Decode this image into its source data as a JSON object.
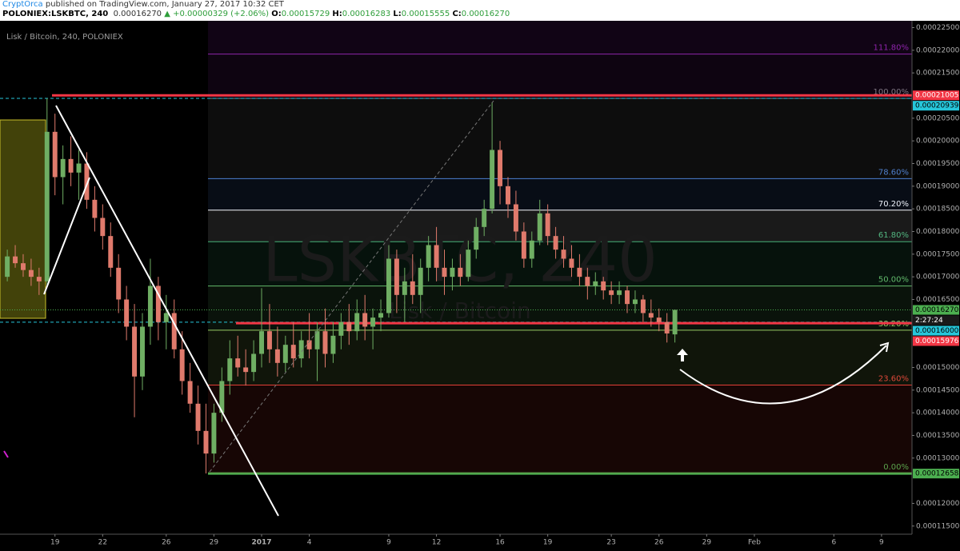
{
  "header": {
    "user": "CryptOrca",
    "published": "published on TradingView.com, January 27, 2017 10:32 CET",
    "symbol": "POLONIEX:LSKBTC, 240",
    "last": "0.00016270",
    "change": "▲ +0.00000329 (+2.06%)",
    "ohlc": [
      {
        "label": "O:",
        "value": "0.00015729"
      },
      {
        "label": "H:",
        "value": "0.00016283"
      },
      {
        "label": "L:",
        "value": "0.00015555"
      },
      {
        "label": "C:",
        "value": "0.00016270"
      }
    ]
  },
  "chart_data": {
    "type": "candlestick",
    "title": "Lisk / Bitcoin, 240, POLONIEX",
    "watermark": "LSKBTC, 240",
    "watermark_sub": "Lisk / Bitcoin",
    "up_color": "#6fae63",
    "down_color": "#e07a6c",
    "x": [
      "2016-12-16T00:00",
      "2016-12-16T12:00",
      "2016-12-17T00:00",
      "2016-12-17T12:00",
      "2016-12-18T00:00",
      "2016-12-18T12:00",
      "2016-12-19T00:00",
      "2016-12-19T12:00",
      "2016-12-20T00:00",
      "2016-12-20T12:00",
      "2016-12-21T00:00",
      "2016-12-21T12:00",
      "2016-12-22T00:00",
      "2016-12-22T12:00",
      "2016-12-23T00:00",
      "2016-12-23T12:00",
      "2016-12-24T00:00",
      "2016-12-24T12:00",
      "2016-12-25T00:00",
      "2016-12-25T12:00",
      "2016-12-26T00:00",
      "2016-12-26T12:00",
      "2016-12-27T00:00",
      "2016-12-27T12:00",
      "2016-12-28T00:00",
      "2016-12-28T12:00",
      "2016-12-29T00:00",
      "2016-12-29T12:00",
      "2016-12-30T00:00",
      "2016-12-30T12:00",
      "2016-12-31T00:00",
      "2016-12-31T12:00",
      "2017-01-01T00:00",
      "2017-01-01T12:00",
      "2017-01-02T00:00",
      "2017-01-02T12:00",
      "2017-01-03T00:00",
      "2017-01-03T12:00",
      "2017-01-04T00:00",
      "2017-01-04T12:00",
      "2017-01-05T00:00",
      "2017-01-05T12:00",
      "2017-01-06T00:00",
      "2017-01-06T12:00",
      "2017-01-07T00:00",
      "2017-01-07T12:00",
      "2017-01-08T00:00",
      "2017-01-08T12:00",
      "2017-01-09T00:00",
      "2017-01-09T12:00",
      "2017-01-10T00:00",
      "2017-01-10T12:00",
      "2017-01-11T00:00",
      "2017-01-11T12:00",
      "2017-01-12T00:00",
      "2017-01-12T12:00",
      "2017-01-13T00:00",
      "2017-01-13T12:00",
      "2017-01-14T00:00",
      "2017-01-14T12:00",
      "2017-01-15T00:00",
      "2017-01-15T12:00",
      "2017-01-16T00:00",
      "2017-01-16T12:00",
      "2017-01-17T00:00",
      "2017-01-17T12:00",
      "2017-01-18T00:00",
      "2017-01-18T12:00",
      "2017-01-19T00:00",
      "2017-01-19T12:00",
      "2017-01-20T00:00",
      "2017-01-20T12:00",
      "2017-01-21T00:00",
      "2017-01-21T12:00",
      "2017-01-22T00:00",
      "2017-01-22T12:00",
      "2017-01-23T00:00",
      "2017-01-23T12:00",
      "2017-01-24T00:00",
      "2017-01-24T12:00",
      "2017-01-25T00:00",
      "2017-01-25T12:00",
      "2017-01-26T00:00",
      "2017-01-26T12:00",
      "2017-01-27T00:00"
    ],
    "open": [
      0.00017,
      0.0001745,
      0.000173,
      0.0001715,
      0.00017,
      0.000169,
      0.000202,
      0.000192,
      0.000196,
      0.000193,
      0.000195,
      0.000187,
      0.000183,
      0.000179,
      0.000172,
      0.000165,
      0.000159,
      0.000148,
      0.000159,
      0.000168,
      0.00016,
      0.000162,
      0.000154,
      0.000147,
      0.000142,
      0.000136,
      0.000131,
      0.00014,
      0.000147,
      0.000152,
      0.00015,
      0.000149,
      0.000153,
      0.000158,
      0.000154,
      0.000151,
      0.000155,
      0.000152,
      0.000156,
      0.000154,
      0.000158,
      0.000153,
      0.000157,
      0.00016,
      0.000158,
      0.000162,
      0.000159,
      0.000161,
      0.000162,
      0.000174,
      0.000166,
      0.000169,
      0.000166,
      0.000172,
      0.000177,
      0.000172,
      0.00017,
      0.000172,
      0.00017,
      0.000176,
      0.000181,
      0.000185,
      0.000198,
      0.00019,
      0.000186,
      0.00018,
      0.000174,
      0.000178,
      0.000184,
      0.000179,
      0.000176,
      0.000174,
      0.000172,
      0.00017,
      0.000168,
      0.000169,
      0.000167,
      0.000166,
      0.000167,
      0.000164,
      0.000165,
      0.000162,
      0.000161,
      0.00016,
      0.0001573
    ],
    "high": [
      0.000176,
      0.000177,
      0.000175,
      0.000174,
      0.000172,
      0.0002094,
      0.000206,
      0.000199,
      0.000201,
      0.000198,
      0.0001975,
      0.00019,
      0.000186,
      0.000182,
      0.000175,
      0.000168,
      0.000164,
      0.000162,
      0.000174,
      0.00017,
      0.000166,
      0.000165,
      0.000158,
      0.000151,
      0.000146,
      0.000142,
      0.000142,
      0.00015,
      0.000156,
      0.000157,
      0.000154,
      0.000156,
      0.0001675,
      0.000164,
      0.000159,
      0.000157,
      0.00016,
      0.000158,
      0.000162,
      0.00016,
      0.000163,
      0.00016,
      0.000162,
      0.000164,
      0.000165,
      0.000166,
      0.000163,
      0.000165,
      0.000177,
      0.000176,
      0.000172,
      0.000175,
      0.000174,
      0.000179,
      0.000181,
      0.000176,
      0.000174,
      0.000175,
      0.000178,
      0.000183,
      0.000187,
      0.0002085,
      0.0002,
      0.000192,
      0.000189,
      0.000182,
      0.00018,
      0.000187,
      0.000186,
      0.000181,
      0.000179,
      0.000177,
      0.000175,
      0.000172,
      0.000171,
      0.00017,
      0.000169,
      0.000169,
      0.000168,
      0.000167,
      0.000166,
      0.000165,
      0.000163,
      0.000162,
      0.0001628
    ],
    "low": [
      0.000169,
      0.000172,
      0.00017,
      0.000168,
      0.000166,
      0.000168,
      0.000188,
      0.000186,
      0.00019,
      0.000187,
      0.000185,
      0.00018,
      0.000176,
      0.00017,
      0.000162,
      0.000156,
      0.000139,
      0.000145,
      0.000155,
      0.000156,
      0.000154,
      0.000152,
      0.000144,
      0.00014,
      0.000133,
      0.0001266,
      0.000129,
      0.000138,
      0.000144,
      0.000148,
      0.000146,
      0.000147,
      0.00015,
      0.000151,
      0.000148,
      0.000149,
      0.00015,
      0.00015,
      0.000152,
      0.000147,
      0.00015,
      0.000151,
      0.000154,
      0.000155,
      0.000156,
      0.000156,
      0.000154,
      0.000158,
      0.000161,
      0.000162,
      0.00016,
      0.000164,
      0.000162,
      0.000169,
      0.000169,
      0.000166,
      0.000167,
      0.000168,
      0.000169,
      0.000174,
      0.000179,
      0.000184,
      0.000186,
      0.000183,
      0.000178,
      0.000172,
      0.000172,
      0.000177,
      0.000177,
      0.000174,
      0.000172,
      0.00017,
      0.000168,
      0.000165,
      0.000166,
      0.000165,
      0.000164,
      0.000164,
      0.000162,
      0.000162,
      0.00016,
      0.000159,
      0.000158,
      0.0001555,
      0.0001555
    ],
    "close": [
      0.0001745,
      0.000173,
      0.0001715,
      0.00017,
      0.000169,
      0.000202,
      0.000192,
      0.000196,
      0.000193,
      0.000195,
      0.000187,
      0.000183,
      0.000179,
      0.000172,
      0.000165,
      0.000159,
      0.000148,
      0.000159,
      0.000168,
      0.00016,
      0.000162,
      0.000154,
      0.000147,
      0.000142,
      0.000136,
      0.000131,
      0.00014,
      0.000147,
      0.000152,
      0.00015,
      0.000149,
      0.000153,
      0.000158,
      0.000154,
      0.000151,
      0.000155,
      0.000152,
      0.000156,
      0.000154,
      0.000158,
      0.000153,
      0.000157,
      0.00016,
      0.000158,
      0.000162,
      0.000159,
      0.000161,
      0.000162,
      0.000174,
      0.000166,
      0.000169,
      0.000166,
      0.000172,
      0.000177,
      0.000172,
      0.00017,
      0.000172,
      0.00017,
      0.000176,
      0.000181,
      0.000185,
      0.000198,
      0.00019,
      0.000186,
      0.00018,
      0.000174,
      0.000178,
      0.000184,
      0.000179,
      0.000176,
      0.000174,
      0.000172,
      0.00017,
      0.000168,
      0.000169,
      0.000167,
      0.000166,
      0.000167,
      0.000164,
      0.000165,
      0.000162,
      0.000161,
      0.00016,
      0.0001575,
      0.0001627
    ],
    "xlim": [
      "2016-12-15T13:00",
      "2017-02-10T22:00"
    ],
    "xticks": [
      {
        "value": "2016-12-19T00:00",
        "label": "19"
      },
      {
        "value": "2016-12-22T00:00",
        "label": "22"
      },
      {
        "value": "2016-12-26T00:00",
        "label": "26"
      },
      {
        "value": "2016-12-29T00:00",
        "label": "29"
      },
      {
        "value": "2017-01-01T00:00",
        "label": "2017"
      },
      {
        "value": "2017-01-04T00:00",
        "label": "4"
      },
      {
        "value": "2017-01-09T00:00",
        "label": "9"
      },
      {
        "value": "2017-01-12T00:00",
        "label": "12"
      },
      {
        "value": "2017-01-16T00:00",
        "label": "16"
      },
      {
        "value": "2017-01-19T00:00",
        "label": "19"
      },
      {
        "value": "2017-01-23T00:00",
        "label": "23"
      },
      {
        "value": "2017-01-26T00:00",
        "label": "26"
      },
      {
        "value": "2017-01-29T00:00",
        "label": "29"
      },
      {
        "value": "2017-02-01T00:00",
        "label": "Feb"
      },
      {
        "value": "2017-02-06T00:00",
        "label": "6"
      },
      {
        "value": "2017-02-09T00:00",
        "label": "9"
      }
    ],
    "ylim": [
      0.0001132,
      0.0002265
    ],
    "yticks": [
      {
        "value": 0.000115,
        "label": "0.00011500"
      },
      {
        "value": 0.00012,
        "label": "0.00012000"
      },
      {
        "value": 0.00013,
        "label": "0.00013000"
      },
      {
        "value": 0.000135,
        "label": "0.00013500"
      },
      {
        "value": 0.00014,
        "label": "0.00014000"
      },
      {
        "value": 0.000145,
        "label": "0.00014500"
      },
      {
        "value": 0.00015,
        "label": "0.00015000"
      },
      {
        "value": 0.000165,
        "label": "0.00016500"
      },
      {
        "value": 0.00017,
        "label": "0.00017000"
      },
      {
        "value": 0.000175,
        "label": "0.00017500"
      },
      {
        "value": 0.00018,
        "label": "0.00018000"
      },
      {
        "value": 0.000185,
        "label": "0.00018500"
      },
      {
        "value": 0.00019,
        "label": "0.00019000"
      },
      {
        "value": 0.000195,
        "label": "0.00019500"
      },
      {
        "value": 0.0002,
        "label": "0.00020000"
      },
      {
        "value": 0.000205,
        "label": "0.00020500"
      },
      {
        "value": 0.000215,
        "label": "0.00021500"
      },
      {
        "value": 0.00022,
        "label": "0.00022000"
      },
      {
        "value": 0.000225,
        "label": "0.00022500"
      }
    ],
    "grid": false,
    "price_lines": [
      {
        "value": 0.00021005,
        "label": "0.00021005",
        "color": "#f23645",
        "style": "solid"
      },
      {
        "value": 0.0001627,
        "label": "0.00016270",
        "color": "#4caf50",
        "style": "dotted"
      },
      {
        "value": 0.00016,
        "label": "0.00016000",
        "color": "#26c6da",
        "style": "dashed"
      },
      {
        "value": 0.00015976,
        "label": "0.00015976",
        "color": "#f23645",
        "style": "solid"
      }
    ],
    "countdown": "2:27:24",
    "fib": {
      "low": {
        "value": 0.00012658,
        "label": "0.00012658",
        "color": "#4caf50"
      },
      "high": {
        "value": 0.00020939,
        "label": "0.00020939",
        "color": "#26c6da"
      },
      "levels": [
        {
          "value": 0,
          "label": "0.00%",
          "color": "#4caf50"
        },
        {
          "value": 23.6,
          "label": "23.60%",
          "color": "#e53935"
        },
        {
          "value": 38.2,
          "label": "38.20%",
          "color": "#9ccc65"
        },
        {
          "value": 50,
          "label": "50.00%",
          "color": "#66bb6a"
        },
        {
          "value": 61.8,
          "label": "61.80%",
          "color": "#3fae72"
        },
        {
          "value": 70.2,
          "label": "70.20%",
          "color": "#ffffff"
        },
        {
          "value": 78.6,
          "label": "78.60%",
          "color": "#4a7fd4"
        },
        {
          "value": 100,
          "label": "100.00%",
          "color": "#808080"
        },
        {
          "value": 111.8,
          "label": "111.80%",
          "color": "#8e24aa"
        }
      ]
    }
  }
}
